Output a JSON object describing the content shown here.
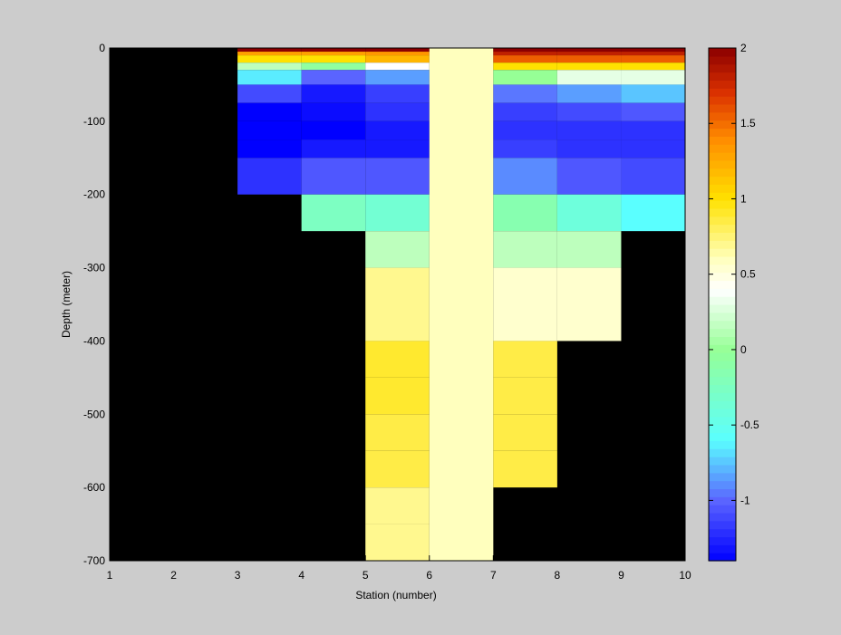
{
  "chart_data": {
    "type": "heatmap",
    "title": "",
    "xlabel": "Station (number)",
    "ylabel": "Depth (meter)",
    "xlim": [
      1,
      10
    ],
    "ylim": [
      -700,
      0
    ],
    "x_ticks": [
      "1",
      "2",
      "3",
      "4",
      "5",
      "6",
      "7",
      "8",
      "9",
      "10"
    ],
    "y_ticks": [
      "0",
      "-100",
      "-200",
      "-300",
      "-400",
      "-500",
      "-600",
      "-700"
    ],
    "colorbar": {
      "ticks": [
        "2",
        "1.5",
        "1",
        "0.5",
        "0",
        "-0.5",
        "-1"
      ],
      "tick_values": [
        2,
        1.5,
        1,
        0.5,
        0,
        -0.5,
        -1
      ],
      "range": [
        -1.4,
        2
      ],
      "colormap": "jet-white",
      "placement": "right"
    },
    "background_color": "#000000",
    "cells": [
      {
        "x0": 3,
        "x1": 4,
        "y0": -5,
        "y1": 0,
        "v": 2.0
      },
      {
        "x0": 3,
        "x1": 4,
        "y0": -10,
        "y1": -5,
        "v": 1.3
      },
      {
        "x0": 3,
        "x1": 4,
        "y0": -20,
        "y1": -10,
        "v": 1.0
      },
      {
        "x0": 3,
        "x1": 4,
        "y0": -30,
        "y1": -20,
        "v": 0.15
      },
      {
        "x0": 3,
        "x1": 4,
        "y0": -50,
        "y1": -30,
        "v": -0.65
      },
      {
        "x0": 3,
        "x1": 4,
        "y0": -75,
        "y1": -50,
        "v": -1.1
      },
      {
        "x0": 3,
        "x1": 4,
        "y0": -100,
        "y1": -75,
        "v": -1.4
      },
      {
        "x0": 3,
        "x1": 4,
        "y0": -125,
        "y1": -100,
        "v": -1.4
      },
      {
        "x0": 3,
        "x1": 4,
        "y0": -150,
        "y1": -125,
        "v": -1.4
      },
      {
        "x0": 3,
        "x1": 4,
        "y0": -200,
        "y1": -150,
        "v": -1.2
      },
      {
        "x0": 4,
        "x1": 5,
        "y0": -5,
        "y1": 0,
        "v": 2.0
      },
      {
        "x0": 4,
        "x1": 5,
        "y0": -10,
        "y1": -5,
        "v": 1.3
      },
      {
        "x0": 4,
        "x1": 5,
        "y0": -20,
        "y1": -10,
        "v": 1.0
      },
      {
        "x0": 4,
        "x1": 5,
        "y0": -30,
        "y1": -20,
        "v": -0.05
      },
      {
        "x0": 4,
        "x1": 5,
        "y0": -50,
        "y1": -30,
        "v": -1.0
      },
      {
        "x0": 4,
        "x1": 5,
        "y0": -75,
        "y1": -50,
        "v": -1.3
      },
      {
        "x0": 4,
        "x1": 5,
        "y0": -100,
        "y1": -75,
        "v": -1.35
      },
      {
        "x0": 4,
        "x1": 5,
        "y0": -125,
        "y1": -100,
        "v": -1.4
      },
      {
        "x0": 4,
        "x1": 5,
        "y0": -150,
        "y1": -125,
        "v": -1.3
      },
      {
        "x0": 4,
        "x1": 5,
        "y0": -200,
        "y1": -150,
        "v": -1.05
      },
      {
        "x0": 4,
        "x1": 5,
        "y0": -250,
        "y1": -200,
        "v": -0.25
      },
      {
        "x0": 5,
        "x1": 6,
        "y0": -5,
        "y1": 0,
        "v": 2.0
      },
      {
        "x0": 5,
        "x1": 6,
        "y0": -10,
        "y1": -5,
        "v": 1.35
      },
      {
        "x0": 5,
        "x1": 6,
        "y0": -20,
        "y1": -10,
        "v": 1.2
      },
      {
        "x0": 5,
        "x1": 6,
        "y0": -30,
        "y1": -20,
        "v": 0.4
      },
      {
        "x0": 5,
        "x1": 6,
        "y0": -50,
        "y1": -30,
        "v": -0.85
      },
      {
        "x0": 5,
        "x1": 6,
        "y0": -75,
        "y1": -50,
        "v": -1.15
      },
      {
        "x0": 5,
        "x1": 6,
        "y0": -100,
        "y1": -75,
        "v": -1.2
      },
      {
        "x0": 5,
        "x1": 6,
        "y0": -125,
        "y1": -100,
        "v": -1.3
      },
      {
        "x0": 5,
        "x1": 6,
        "y0": -150,
        "y1": -125,
        "v": -1.3
      },
      {
        "x0": 5,
        "x1": 6,
        "y0": -200,
        "y1": -150,
        "v": -1.05
      },
      {
        "x0": 5,
        "x1": 6,
        "y0": -250,
        "y1": -200,
        "v": -0.35
      },
      {
        "x0": 5,
        "x1": 6,
        "y0": -300,
        "y1": -250,
        "v": 0.15
      },
      {
        "x0": 5,
        "x1": 6,
        "y0": -350,
        "y1": -300,
        "v": 0.7
      },
      {
        "x0": 5,
        "x1": 6,
        "y0": -400,
        "y1": -350,
        "v": 0.7
      },
      {
        "x0": 5,
        "x1": 6,
        "y0": -450,
        "y1": -400,
        "v": 0.9
      },
      {
        "x0": 5,
        "x1": 6,
        "y0": -500,
        "y1": -450,
        "v": 0.9
      },
      {
        "x0": 5,
        "x1": 6,
        "y0": -550,
        "y1": -500,
        "v": 0.85
      },
      {
        "x0": 5,
        "x1": 6,
        "y0": -600,
        "y1": -550,
        "v": 0.85
      },
      {
        "x0": 5,
        "x1": 6,
        "y0": -650,
        "y1": -600,
        "v": 0.7
      },
      {
        "x0": 5,
        "x1": 6,
        "y0": -700,
        "y1": -650,
        "v": 0.7
      },
      {
        "x0": 6,
        "x1": 7,
        "y0": -700,
        "y1": 0,
        "v": 0.6
      },
      {
        "x0": 7,
        "x1": 8,
        "y0": -5,
        "y1": 0,
        "v": 2.0
      },
      {
        "x0": 7,
        "x1": 8,
        "y0": -10,
        "y1": -5,
        "v": 1.8
      },
      {
        "x0": 7,
        "x1": 8,
        "y0": -20,
        "y1": -10,
        "v": 1.55
      },
      {
        "x0": 7,
        "x1": 8,
        "y0": -30,
        "y1": -20,
        "v": 1.0
      },
      {
        "x0": 7,
        "x1": 8,
        "y0": -50,
        "y1": -30,
        "v": 0.0
      },
      {
        "x0": 7,
        "x1": 8,
        "y0": -75,
        "y1": -50,
        "v": -0.95
      },
      {
        "x0": 7,
        "x1": 8,
        "y0": -100,
        "y1": -75,
        "v": -1.15
      },
      {
        "x0": 7,
        "x1": 8,
        "y0": -125,
        "y1": -100,
        "v": -1.2
      },
      {
        "x0": 7,
        "x1": 8,
        "y0": -150,
        "y1": -125,
        "v": -1.15
      },
      {
        "x0": 7,
        "x1": 8,
        "y0": -200,
        "y1": -150,
        "v": -0.9
      },
      {
        "x0": 7,
        "x1": 8,
        "y0": -250,
        "y1": -200,
        "v": -0.15
      },
      {
        "x0": 7,
        "x1": 8,
        "y0": -300,
        "y1": -250,
        "v": 0.15
      },
      {
        "x0": 7,
        "x1": 8,
        "y0": -350,
        "y1": -300,
        "v": 0.55
      },
      {
        "x0": 7,
        "x1": 8,
        "y0": -400,
        "y1": -350,
        "v": 0.55
      },
      {
        "x0": 7,
        "x1": 8,
        "y0": -450,
        "y1": -400,
        "v": 0.85
      },
      {
        "x0": 7,
        "x1": 8,
        "y0": -500,
        "y1": -450,
        "v": 0.85
      },
      {
        "x0": 7,
        "x1": 8,
        "y0": -550,
        "y1": -500,
        "v": 0.85
      },
      {
        "x0": 7,
        "x1": 8,
        "y0": -600,
        "y1": -550,
        "v": 0.85
      },
      {
        "x0": 8,
        "x1": 9,
        "y0": -5,
        "y1": 0,
        "v": 2.0
      },
      {
        "x0": 8,
        "x1": 9,
        "y0": -10,
        "y1": -5,
        "v": 1.8
      },
      {
        "x0": 8,
        "x1": 9,
        "y0": -20,
        "y1": -10,
        "v": 1.55
      },
      {
        "x0": 8,
        "x1": 9,
        "y0": -30,
        "y1": -20,
        "v": 1.0
      },
      {
        "x0": 8,
        "x1": 9,
        "y0": -50,
        "y1": -30,
        "v": 0.3
      },
      {
        "x0": 8,
        "x1": 9,
        "y0": -75,
        "y1": -50,
        "v": -0.85
      },
      {
        "x0": 8,
        "x1": 9,
        "y0": -100,
        "y1": -75,
        "v": -1.1
      },
      {
        "x0": 8,
        "x1": 9,
        "y0": -125,
        "y1": -100,
        "v": -1.2
      },
      {
        "x0": 8,
        "x1": 9,
        "y0": -150,
        "y1": -125,
        "v": -1.2
      },
      {
        "x0": 8,
        "x1": 9,
        "y0": -200,
        "y1": -150,
        "v": -1.05
      },
      {
        "x0": 8,
        "x1": 9,
        "y0": -250,
        "y1": -200,
        "v": -0.4
      },
      {
        "x0": 8,
        "x1": 9,
        "y0": -300,
        "y1": -250,
        "v": 0.15
      },
      {
        "x0": 8,
        "x1": 9,
        "y0": -350,
        "y1": -300,
        "v": 0.55
      },
      {
        "x0": 8,
        "x1": 9,
        "y0": -400,
        "y1": -350,
        "v": 0.55
      },
      {
        "x0": 9,
        "x1": 10,
        "y0": -5,
        "y1": 0,
        "v": 2.0
      },
      {
        "x0": 9,
        "x1": 10,
        "y0": -10,
        "y1": -5,
        "v": 1.8
      },
      {
        "x0": 9,
        "x1": 10,
        "y0": -20,
        "y1": -10,
        "v": 1.55
      },
      {
        "x0": 9,
        "x1": 10,
        "y0": -30,
        "y1": -20,
        "v": 1.0
      },
      {
        "x0": 9,
        "x1": 10,
        "y0": -50,
        "y1": -30,
        "v": 0.3
      },
      {
        "x0": 9,
        "x1": 10,
        "y0": -75,
        "y1": -50,
        "v": -0.75
      },
      {
        "x0": 9,
        "x1": 10,
        "y0": -100,
        "y1": -75,
        "v": -1.05
      },
      {
        "x0": 9,
        "x1": 10,
        "y0": -125,
        "y1": -100,
        "v": -1.2
      },
      {
        "x0": 9,
        "x1": 10,
        "y0": -150,
        "y1": -125,
        "v": -1.2
      },
      {
        "x0": 9,
        "x1": 10,
        "y0": -200,
        "y1": -150,
        "v": -1.1
      },
      {
        "x0": 9,
        "x1": 10,
        "y0": -250,
        "y1": -200,
        "v": -0.6
      }
    ]
  }
}
